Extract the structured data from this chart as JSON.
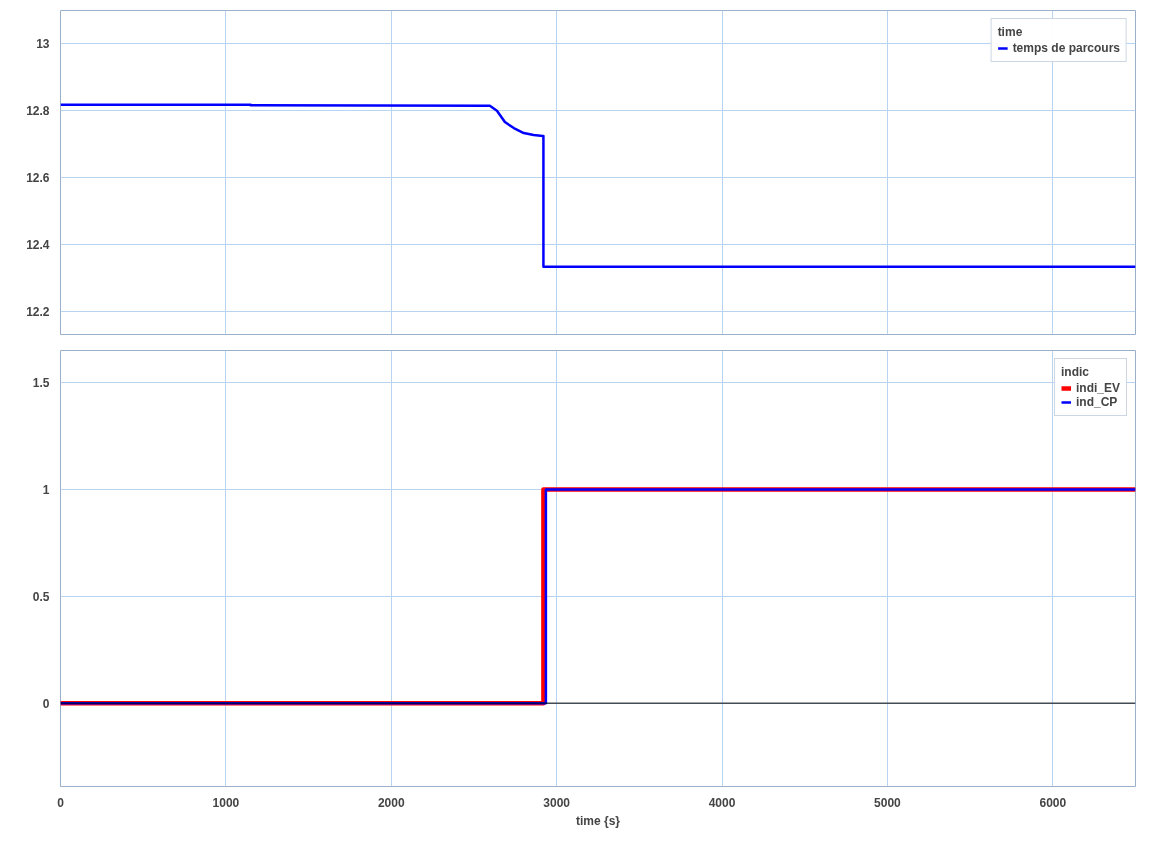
{
  "chart_data": [
    {
      "type": "line",
      "legend_title": "time",
      "legend": "top right",
      "grid": true,
      "tick_labels": "y",
      "xlim": [
        0,
        6500
      ],
      "xticks": [
        0,
        1000,
        2000,
        3000,
        4000,
        5000,
        6000
      ],
      "ylim": [
        12.13,
        13.1
      ],
      "yticks": [
        12.2,
        12.4,
        12.6,
        12.8,
        13
      ],
      "series": [
        {
          "name": "temps de parcours",
          "color": "#0000ff",
          "x": [
            0,
            1150,
            1150,
            2596,
            2639,
            2687,
            2741,
            2801,
            2861,
            2916,
            2920,
            2920,
            6500
          ],
          "values": [
            12.818,
            12.818,
            12.816,
            12.815,
            12.8,
            12.766,
            12.748,
            12.733,
            12.727,
            12.724,
            12.724,
            12.333,
            12.333
          ]
        }
      ]
    },
    {
      "type": "line",
      "legend_title": "indic",
      "legend": "top right",
      "grid": true,
      "xlabel": "time {s}",
      "xlim": [
        0,
        6500
      ],
      "xticks": [
        0,
        1000,
        2000,
        3000,
        4000,
        5000,
        6000
      ],
      "ylim": [
        -0.39,
        1.65
      ],
      "yticks": [
        0,
        0.5,
        1,
        1.5
      ],
      "ref_lines": [
        {
          "axis": "y",
          "value": 0,
          "color": "#000000"
        }
      ],
      "series": [
        {
          "name": "indi_EV",
          "color": "#ff0000",
          "x": [
            0,
            2920,
            2920,
            6500
          ],
          "values": [
            0,
            0,
            1,
            1
          ]
        },
        {
          "name": "ind_CP",
          "color": "#0000ff",
          "x": [
            0,
            2935,
            2935,
            6500
          ],
          "values": [
            0,
            0,
            1,
            1
          ]
        }
      ]
    }
  ]
}
